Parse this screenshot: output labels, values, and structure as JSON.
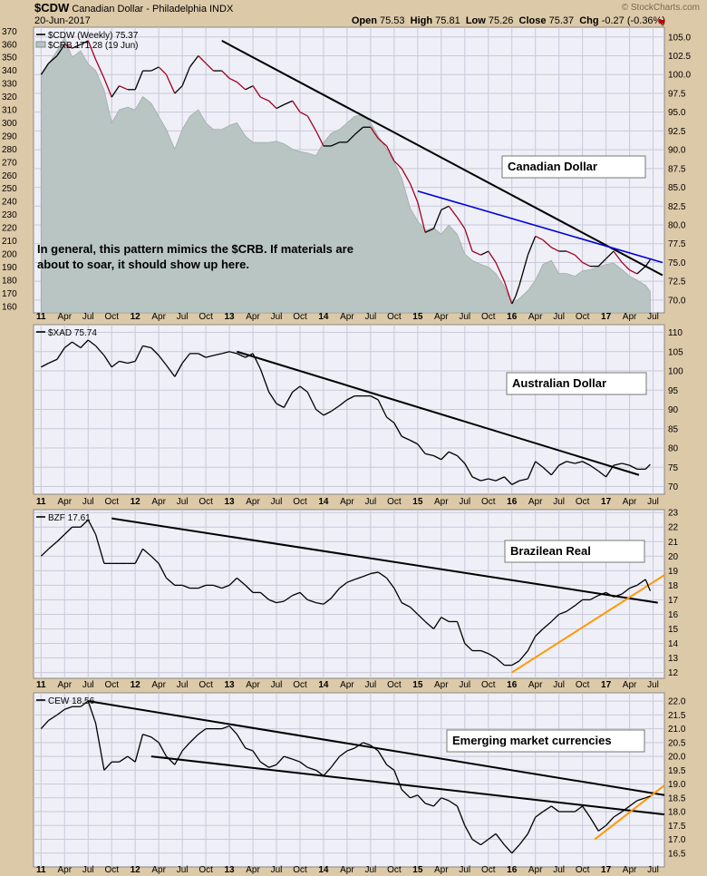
{
  "header": {
    "symbol": "$CDW",
    "name": "Canadian Dollar - Philadelphia",
    "exchange": "INDX",
    "date": "20-Jun-2017",
    "open_label": "Open",
    "open": "75.53",
    "high_label": "High",
    "high": "75.81",
    "low_label": "Low",
    "low": "75.26",
    "close_label": "Close",
    "close": "75.37",
    "chg_label": "Chg",
    "chg": "-0.27 (-0.36%)",
    "watermark": "© StockCharts.com"
  },
  "colors": {
    "panel_bg": "#efeff7",
    "grid": "#c9c9d9",
    "frame": "#dcc9a8",
    "price_line": "#000000",
    "cdw_down": "#a00020",
    "crb_fill": "#b9c5c2",
    "trend_black": "#000000",
    "trend_blue": "#0000dd",
    "trend_orange": "#ff9900"
  },
  "x_axis": {
    "labels": [
      "11",
      "Apr",
      "Jul",
      "Oct",
      "12",
      "Apr",
      "Jul",
      "Oct",
      "13",
      "Apr",
      "Jul",
      "Oct",
      "14",
      "Apr",
      "Jul",
      "Oct",
      "15",
      "Apr",
      "Jul",
      "Oct",
      "16",
      "Apr",
      "Jul",
      "Oct",
      "17",
      "Apr",
      "Jul"
    ],
    "year_labels": [
      "11",
      "12",
      "13",
      "14",
      "15",
      "16",
      "17"
    ]
  },
  "chart_data": [
    {
      "type": "line",
      "id": "cdw",
      "legend": [
        {
          "name": "$CDW (Weekly) 75.37",
          "style": "line"
        },
        {
          "name": "$CRB 171.28 (19 Jun)",
          "style": "area"
        }
      ],
      "annotation_title": "Canadian Dollar",
      "note_line1": "In general, this pattern mimics the $CRB. If materials are",
      "note_line2": "about to soar, it should show up here.",
      "y_right": [
        105.0,
        102.5,
        100.0,
        97.5,
        95.0,
        92.5,
        90.0,
        87.5,
        85.0,
        82.5,
        80.0,
        77.5,
        75.0,
        72.5,
        70.0
      ],
      "y_left": [
        370,
        360,
        350,
        340,
        330,
        320,
        310,
        300,
        290,
        280,
        270,
        260,
        250,
        240,
        230,
        220,
        210,
        200,
        190,
        180,
        170,
        160
      ],
      "ylim_right": [
        68.3,
        106.3
      ],
      "ylim_left": [
        155,
        373
      ],
      "series": [
        {
          "name": "$CDW",
          "x": [
            2011.0,
            2011.08,
            2011.17,
            2011.25,
            2011.33,
            2011.42,
            2011.5,
            2011.58,
            2011.67,
            2011.75,
            2011.83,
            2011.92,
            2012.0,
            2012.08,
            2012.17,
            2012.25,
            2012.33,
            2012.42,
            2012.5,
            2012.58,
            2012.67,
            2012.75,
            2012.83,
            2012.92,
            2013.0,
            2013.08,
            2013.17,
            2013.25,
            2013.33,
            2013.42,
            2013.5,
            2013.58,
            2013.67,
            2013.75,
            2013.83,
            2013.92,
            2014.0,
            2014.08,
            2014.17,
            2014.25,
            2014.33,
            2014.42,
            2014.5,
            2014.58,
            2014.67,
            2014.75,
            2014.83,
            2014.92,
            2015.0,
            2015.08,
            2015.17,
            2015.25,
            2015.33,
            2015.42,
            2015.5,
            2015.58,
            2015.67,
            2015.75,
            2015.83,
            2015.92,
            2016.0,
            2016.04,
            2016.08,
            2016.17,
            2016.25,
            2016.33,
            2016.42,
            2016.5,
            2016.58,
            2016.67,
            2016.75,
            2016.83,
            2016.92,
            2017.0,
            2017.08,
            2017.17,
            2017.25,
            2017.33,
            2017.42,
            2017.47
          ],
          "values": [
            100.0,
            101.5,
            102.5,
            104.0,
            103.5,
            104.0,
            104.5,
            102.0,
            99.5,
            97.0,
            98.5,
            98.0,
            98.0,
            100.5,
            100.5,
            101.0,
            100.0,
            97.5,
            98.5,
            101.0,
            102.5,
            101.5,
            100.5,
            100.5,
            99.5,
            99.0,
            98.0,
            98.5,
            97.0,
            96.5,
            95.5,
            96.0,
            96.5,
            95.0,
            94.5,
            92.5,
            90.5,
            90.5,
            91.0,
            91.0,
            92.0,
            93.0,
            93.0,
            91.5,
            90.5,
            88.5,
            87.5,
            85.5,
            83.0,
            79.0,
            79.5,
            82.0,
            82.5,
            81.0,
            79.5,
            76.5,
            76.0,
            76.5,
            75.0,
            72.5,
            69.5,
            70.5,
            72.0,
            76.0,
            78.5,
            78.0,
            77.0,
            76.5,
            76.5,
            76.0,
            75.0,
            74.5,
            74.5,
            75.5,
            76.5,
            75.0,
            74.0,
            73.5,
            74.5,
            75.37
          ]
        },
        {
          "name": "$CRB",
          "x": [
            2011.0,
            2011.08,
            2011.17,
            2011.25,
            2011.33,
            2011.42,
            2011.5,
            2011.58,
            2011.67,
            2011.75,
            2011.83,
            2011.92,
            2012.0,
            2012.08,
            2012.17,
            2012.25,
            2012.33,
            2012.42,
            2012.5,
            2012.58,
            2012.67,
            2012.75,
            2012.83,
            2012.92,
            2013.0,
            2013.08,
            2013.17,
            2013.25,
            2013.33,
            2013.42,
            2013.5,
            2013.58,
            2013.67,
            2013.75,
            2013.83,
            2013.92,
            2014.0,
            2014.08,
            2014.17,
            2014.25,
            2014.33,
            2014.42,
            2014.5,
            2014.58,
            2014.67,
            2014.75,
            2014.83,
            2014.92,
            2015.0,
            2015.08,
            2015.17,
            2015.25,
            2015.33,
            2015.42,
            2015.5,
            2015.58,
            2015.67,
            2015.75,
            2015.83,
            2015.92,
            2016.0,
            2016.08,
            2016.17,
            2016.25,
            2016.33,
            2016.42,
            2016.5,
            2016.58,
            2016.67,
            2016.75,
            2016.83,
            2016.92,
            2017.0,
            2017.08,
            2017.17,
            2017.25,
            2017.33,
            2017.42,
            2017.47
          ],
          "values": [
            335,
            345,
            355,
            365,
            350,
            355,
            345,
            340,
            325,
            300,
            310,
            312,
            310,
            320,
            315,
            305,
            295,
            280,
            295,
            305,
            310,
            300,
            295,
            295,
            298,
            300,
            290,
            285,
            285,
            285,
            286,
            284,
            280,
            278,
            277,
            275,
            285,
            292,
            295,
            300,
            305,
            306,
            300,
            290,
            280,
            270,
            258,
            235,
            225,
            218,
            220,
            215,
            222,
            215,
            200,
            195,
            192,
            190,
            185,
            175,
            162,
            166,
            172,
            180,
            192,
            195,
            185,
            185,
            183,
            187,
            188,
            190,
            192,
            193,
            188,
            183,
            180,
            176,
            171.28
          ]
        }
      ]
    },
    {
      "type": "line",
      "id": "xad",
      "legend": [
        {
          "name": "$XAD 75.74",
          "style": "line"
        }
      ],
      "annotation_title": "Australian Dollar",
      "y_right": [
        110,
        105,
        100,
        95,
        90,
        85,
        80,
        75,
        70
      ],
      "ylim_right": [
        68,
        112
      ],
      "series": [
        {
          "name": "$XAD",
          "x": [
            2011.0,
            2011.08,
            2011.17,
            2011.25,
            2011.33,
            2011.42,
            2011.5,
            2011.58,
            2011.67,
            2011.75,
            2011.83,
            2011.92,
            2012.0,
            2012.08,
            2012.17,
            2012.25,
            2012.33,
            2012.42,
            2012.5,
            2012.58,
            2012.67,
            2012.75,
            2012.83,
            2012.92,
            2013.0,
            2013.08,
            2013.17,
            2013.25,
            2013.33,
            2013.42,
            2013.5,
            2013.58,
            2013.67,
            2013.75,
            2013.83,
            2013.92,
            2014.0,
            2014.08,
            2014.17,
            2014.25,
            2014.33,
            2014.42,
            2014.5,
            2014.58,
            2014.67,
            2014.75,
            2014.83,
            2014.92,
            2015.0,
            2015.08,
            2015.17,
            2015.25,
            2015.33,
            2015.42,
            2015.5,
            2015.58,
            2015.67,
            2015.75,
            2015.83,
            2015.92,
            2016.0,
            2016.08,
            2016.17,
            2016.25,
            2016.33,
            2016.42,
            2016.5,
            2016.58,
            2016.67,
            2016.75,
            2016.83,
            2016.92,
            2017.0,
            2017.08,
            2017.17,
            2017.25,
            2017.33,
            2017.42,
            2017.47
          ],
          "values": [
            101.0,
            102.0,
            103.0,
            106.0,
            107.5,
            106.0,
            108.0,
            106.5,
            104.0,
            101.0,
            102.5,
            102.0,
            102.5,
            106.5,
            106.0,
            104.0,
            101.5,
            98.5,
            102.0,
            104.5,
            104.5,
            103.5,
            104.0,
            104.5,
            105.0,
            104.5,
            103.5,
            104.5,
            100.5,
            94.5,
            91.5,
            90.5,
            94.5,
            96.0,
            94.5,
            90.0,
            88.5,
            89.5,
            91.0,
            92.5,
            93.5,
            93.5,
            93.5,
            92.5,
            88.0,
            86.5,
            83.0,
            82.0,
            81.0,
            78.5,
            78.0,
            77.0,
            79.0,
            78.0,
            76.0,
            72.5,
            71.5,
            72.0,
            71.5,
            72.5,
            70.5,
            71.5,
            72.0,
            76.5,
            75.0,
            73.0,
            75.5,
            76.5,
            76.0,
            76.5,
            75.5,
            74.0,
            72.5,
            75.5,
            76.0,
            75.5,
            74.5,
            74.5,
            75.74
          ]
        }
      ]
    },
    {
      "type": "line",
      "id": "bzf",
      "legend": [
        {
          "name": "BZF 17.61",
          "style": "line"
        }
      ],
      "annotation_title": "Brazilean Real",
      "y_right": [
        23,
        22,
        21,
        20,
        19,
        18,
        17,
        16,
        15,
        14,
        13,
        12
      ],
      "ylim_right": [
        11.6,
        23.2
      ],
      "series": [
        {
          "name": "BZF",
          "x": [
            2011.0,
            2011.08,
            2011.17,
            2011.25,
            2011.33,
            2011.42,
            2011.5,
            2011.58,
            2011.67,
            2011.75,
            2011.83,
            2011.92,
            2012.0,
            2012.08,
            2012.17,
            2012.25,
            2012.33,
            2012.42,
            2012.5,
            2012.58,
            2012.67,
            2012.75,
            2012.83,
            2012.92,
            2013.0,
            2013.08,
            2013.17,
            2013.25,
            2013.33,
            2013.42,
            2013.5,
            2013.58,
            2013.67,
            2013.75,
            2013.83,
            2013.92,
            2014.0,
            2014.08,
            2014.17,
            2014.25,
            2014.33,
            2014.42,
            2014.5,
            2014.58,
            2014.67,
            2014.75,
            2014.83,
            2014.92,
            2015.0,
            2015.08,
            2015.17,
            2015.25,
            2015.33,
            2015.42,
            2015.5,
            2015.58,
            2015.67,
            2015.75,
            2015.83,
            2015.92,
            2016.0,
            2016.08,
            2016.17,
            2016.25,
            2016.33,
            2016.42,
            2016.5,
            2016.58,
            2016.67,
            2016.75,
            2016.83,
            2016.92,
            2017.0,
            2017.08,
            2017.17,
            2017.25,
            2017.33,
            2017.42,
            2017.47
          ],
          "values": [
            20.0,
            20.5,
            21.0,
            21.5,
            22.0,
            22.0,
            22.5,
            21.5,
            19.5,
            19.5,
            19.5,
            19.5,
            19.5,
            20.5,
            20.0,
            19.5,
            18.5,
            18.0,
            18.0,
            17.8,
            17.8,
            18.0,
            18.0,
            17.8,
            18.0,
            18.5,
            18.0,
            17.5,
            17.5,
            17.0,
            16.8,
            16.9,
            17.3,
            17.5,
            17.0,
            16.8,
            16.7,
            17.1,
            17.8,
            18.2,
            18.4,
            18.6,
            18.8,
            18.9,
            18.5,
            17.8,
            16.8,
            16.5,
            16.0,
            15.5,
            15.0,
            15.8,
            15.5,
            15.5,
            14.0,
            13.5,
            13.5,
            13.3,
            13.0,
            12.5,
            12.5,
            12.8,
            13.5,
            14.5,
            15.0,
            15.5,
            16.0,
            16.2,
            16.6,
            17.0,
            17.0,
            17.3,
            17.5,
            17.2,
            17.4,
            17.8,
            18.0,
            18.4,
            17.61
          ]
        }
      ]
    },
    {
      "type": "line",
      "id": "cew",
      "legend": [
        {
          "name": "CEW 18.56",
          "style": "line"
        }
      ],
      "annotation_title": "Emerging market currencies",
      "y_right": [
        22.0,
        21.5,
        21.0,
        20.5,
        20.0,
        19.5,
        19.0,
        18.5,
        18.0,
        17.5,
        17.0,
        16.5
      ],
      "ylim_right": [
        16.0,
        22.3
      ],
      "series": [
        {
          "name": "CEW",
          "x": [
            2011.0,
            2011.08,
            2011.17,
            2011.25,
            2011.33,
            2011.42,
            2011.5,
            2011.58,
            2011.67,
            2011.75,
            2011.83,
            2011.92,
            2012.0,
            2012.08,
            2012.17,
            2012.25,
            2012.33,
            2012.42,
            2012.5,
            2012.58,
            2012.67,
            2012.75,
            2012.83,
            2012.92,
            2013.0,
            2013.08,
            2013.17,
            2013.25,
            2013.33,
            2013.42,
            2013.5,
            2013.58,
            2013.67,
            2013.75,
            2013.83,
            2013.92,
            2014.0,
            2014.08,
            2014.17,
            2014.25,
            2014.33,
            2014.42,
            2014.5,
            2014.58,
            2014.67,
            2014.75,
            2014.83,
            2014.92,
            2015.0,
            2015.08,
            2015.17,
            2015.25,
            2015.33,
            2015.42,
            2015.5,
            2015.58,
            2015.67,
            2015.75,
            2015.83,
            2015.92,
            2016.0,
            2016.08,
            2016.17,
            2016.25,
            2016.33,
            2016.42,
            2016.5,
            2016.58,
            2016.67,
            2016.75,
            2016.83,
            2016.92,
            2017.0,
            2017.08,
            2017.17,
            2017.25,
            2017.33,
            2017.42,
            2017.47
          ],
          "values": [
            21.0,
            21.3,
            21.5,
            21.7,
            21.8,
            21.8,
            22.0,
            21.2,
            19.5,
            19.8,
            19.8,
            20.0,
            19.8,
            20.8,
            20.7,
            20.5,
            20.0,
            19.7,
            20.2,
            20.5,
            20.8,
            21.0,
            21.0,
            21.0,
            21.1,
            20.8,
            20.3,
            20.2,
            19.8,
            19.6,
            19.7,
            20.0,
            19.9,
            19.8,
            19.6,
            19.5,
            19.3,
            19.6,
            20.0,
            20.2,
            20.3,
            20.5,
            20.4,
            20.2,
            19.7,
            19.5,
            18.8,
            18.5,
            18.6,
            18.3,
            18.2,
            18.5,
            18.4,
            18.2,
            17.5,
            17.0,
            16.8,
            17.0,
            17.2,
            16.8,
            16.5,
            16.8,
            17.2,
            17.8,
            18.0,
            18.2,
            18.0,
            18.0,
            18.0,
            18.2,
            17.8,
            17.3,
            17.5,
            17.8,
            18.0,
            18.2,
            18.4,
            18.5,
            18.56
          ]
        }
      ]
    }
  ]
}
